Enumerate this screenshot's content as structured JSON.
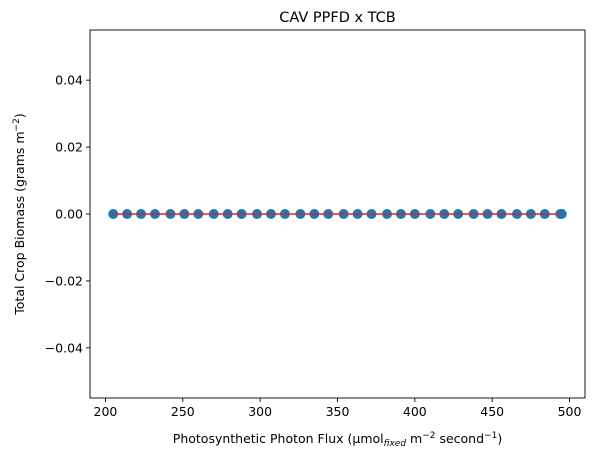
{
  "chart_data": {
    "type": "scatter",
    "title": "CAV PPFD x TCB",
    "xlabel": {
      "prefix": "Photosynthetic Photon Flux (μmol",
      "sub": "fixed",
      "mid": " m",
      "sup1": "−2",
      "mid2": " second",
      "sup2": "−1",
      "suffix": ")"
    },
    "ylabel": {
      "prefix": "Total Crop Biomass (grams m",
      "sup": "−2",
      "suffix": ")"
    },
    "xlim": [
      190,
      510
    ],
    "ylim": [
      -0.055,
      0.055
    ],
    "xticks": [
      200,
      250,
      300,
      350,
      400,
      450,
      500
    ],
    "xtick_labels": [
      "200",
      "250",
      "300",
      "350",
      "400",
      "450",
      "500"
    ],
    "yticks": [
      -0.04,
      -0.02,
      0.0,
      0.02,
      0.04
    ],
    "ytick_labels": [
      "−0.04",
      "−0.02",
      "0.00",
      "0.02",
      "0.04"
    ],
    "grid": false,
    "series": [
      {
        "kind": "scatter",
        "color": "#1f77b4",
        "x": [
          205,
          214,
          223,
          232,
          242,
          251,
          260,
          270,
          279,
          288,
          298,
          307,
          316,
          326,
          335,
          344,
          354,
          363,
          372,
          382,
          391,
          400,
          410,
          419,
          428,
          438,
          447,
          456,
          466,
          475,
          484,
          494,
          495
        ],
        "y": [
          0,
          0,
          0,
          0,
          0,
          0,
          0,
          0,
          0,
          0,
          0,
          0,
          0,
          0,
          0,
          0,
          0,
          0,
          0,
          0,
          0,
          0,
          0,
          0,
          0,
          0,
          0,
          0,
          0,
          0,
          0,
          0,
          0
        ]
      },
      {
        "kind": "line",
        "color": "#d62728",
        "x": [
          205,
          495
        ],
        "y": [
          0,
          0
        ]
      }
    ]
  }
}
